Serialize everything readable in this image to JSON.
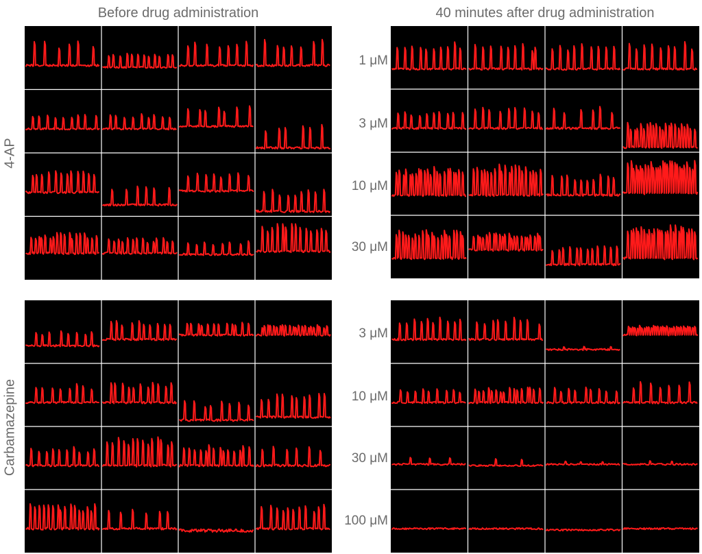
{
  "titles": {
    "before": "Before drug administration",
    "after": "40 minutes after drug administration"
  },
  "groups": {
    "g1": "4-AP",
    "g2": "Carbamazepine"
  },
  "conc": {
    "g1": [
      "1 μM",
      "3 μM",
      "10 μM",
      "30 μM"
    ],
    "g2": [
      "3 μM",
      "10 μM",
      "30 μM",
      "100 μM"
    ]
  },
  "colors": {
    "trace": "#ff1a1a",
    "background": "#000000",
    "grid": "#ffffff",
    "text": "#6b6b6b"
  }
}
